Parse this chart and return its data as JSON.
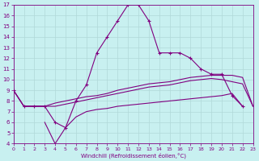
{
  "xlabel": "Windchill (Refroidissement éolien,°C)",
  "x_all": [
    0,
    1,
    2,
    3,
    4,
    5,
    6,
    7,
    8,
    9,
    10,
    11,
    12,
    13,
    14,
    15,
    16,
    17,
    18,
    19,
    20,
    21,
    22,
    23
  ],
  "y_top": [
    9.0,
    7.5,
    7.5,
    7.5,
    6.0,
    5.5,
    8.0,
    9.5,
    12.5,
    14.0,
    15.5,
    17.0,
    17.0,
    15.5,
    12.5,
    12.5,
    12.5,
    12.0,
    11.0,
    10.5,
    10.5,
    8.5,
    7.5,
    null
  ],
  "y_mid1": [
    9.0,
    7.5,
    7.5,
    7.5,
    7.8,
    8.0,
    8.2,
    8.4,
    8.5,
    8.7,
    9.0,
    9.2,
    9.4,
    9.6,
    9.7,
    9.8,
    10.0,
    10.2,
    10.3,
    10.4,
    10.4,
    10.4,
    10.2,
    7.5
  ],
  "y_mid2": [
    9.0,
    7.5,
    7.5,
    7.5,
    7.5,
    7.7,
    7.9,
    8.1,
    8.3,
    8.5,
    8.7,
    8.9,
    9.1,
    9.3,
    9.4,
    9.5,
    9.7,
    9.9,
    10.0,
    10.1,
    10.0,
    9.8,
    9.6,
    7.5
  ],
  "y_bot": [
    null,
    null,
    null,
    6.0,
    4.0,
    5.5,
    6.5,
    7.0,
    7.2,
    7.3,
    7.5,
    7.6,
    7.7,
    7.8,
    7.9,
    8.0,
    8.1,
    8.2,
    8.3,
    8.4,
    8.5,
    8.7,
    7.5,
    null
  ],
  "ylim": [
    4,
    17
  ],
  "xlim": [
    0,
    23
  ],
  "yticks": [
    4,
    5,
    6,
    7,
    8,
    9,
    10,
    11,
    12,
    13,
    14,
    15,
    16,
    17
  ],
  "xticks": [
    0,
    1,
    2,
    3,
    4,
    5,
    6,
    7,
    8,
    9,
    10,
    11,
    12,
    13,
    14,
    15,
    16,
    17,
    18,
    19,
    20,
    21,
    22,
    23
  ],
  "line_color": "#800080",
  "bg_color": "#c8f0f0",
  "grid_color": "#b0d8d8",
  "marker": "+"
}
